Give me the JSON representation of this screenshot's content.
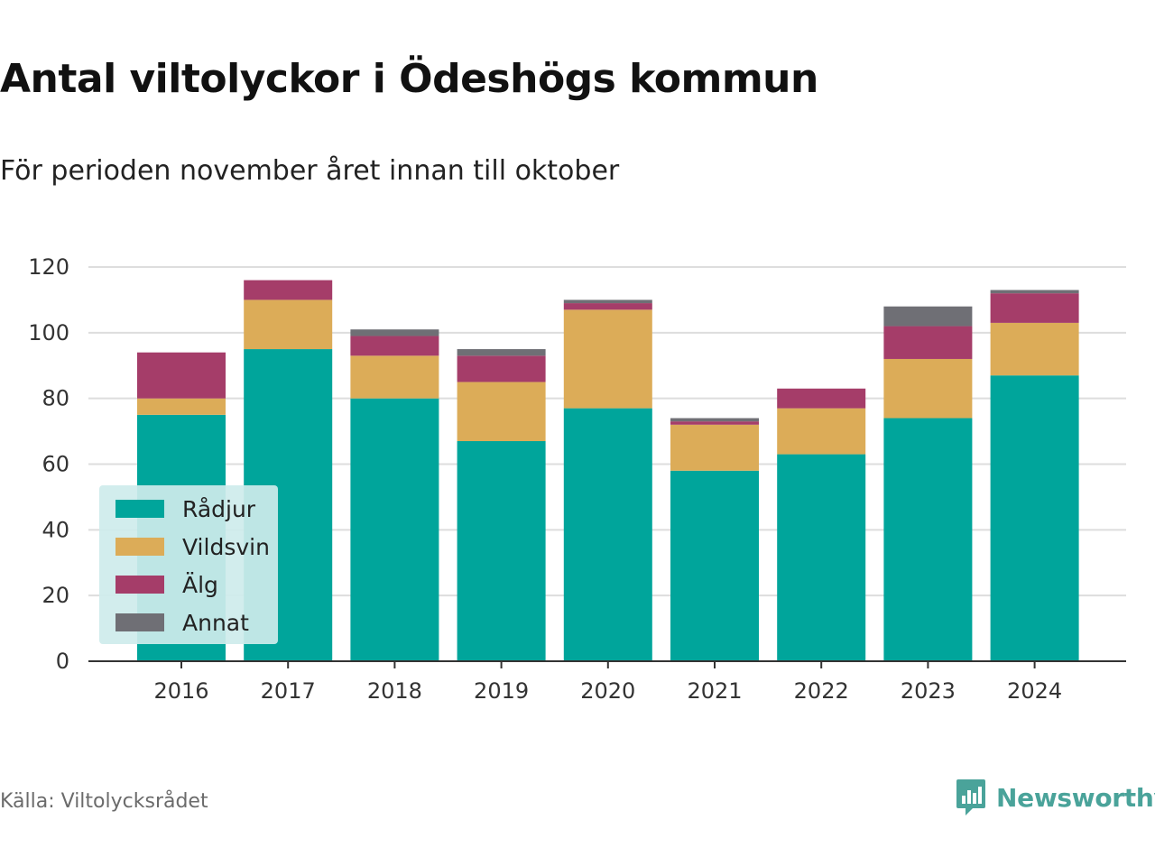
{
  "title": "Antal viltolyckor i Ödeshögs kommun",
  "subtitle": "För perioden november året innan till oktober",
  "source": "Källa: Viltolycksrådet",
  "brand": {
    "name": "Newsworthy",
    "color": "#4aa39a",
    "icon": "bar-chart-speech-icon"
  },
  "chart_data": {
    "type": "bar",
    "stacked": true,
    "categories": [
      "2016",
      "2017",
      "2018",
      "2019",
      "2020",
      "2021",
      "2022",
      "2023",
      "2024"
    ],
    "series": [
      {
        "name": "Rådjur",
        "color": "#00a59b",
        "values": [
          75,
          95,
          80,
          67,
          77,
          58,
          63,
          74,
          87
        ]
      },
      {
        "name": "Vildsvin",
        "color": "#dcac58",
        "values": [
          5,
          15,
          13,
          18,
          30,
          14,
          14,
          18,
          16
        ]
      },
      {
        "name": "Älg",
        "color": "#a53d69",
        "values": [
          14,
          6,
          6,
          8,
          2,
          1,
          6,
          10,
          9
        ]
      },
      {
        "name": "Annat",
        "color": "#6f6f75",
        "values": [
          0,
          0,
          2,
          2,
          1,
          1,
          0,
          6,
          1
        ]
      }
    ],
    "ylim": [
      0,
      120
    ],
    "yticks": [
      0,
      20,
      40,
      60,
      80,
      100,
      120
    ],
    "xlabel": "",
    "ylabel": "",
    "grid": true,
    "legend_position": "bottom-left"
  }
}
